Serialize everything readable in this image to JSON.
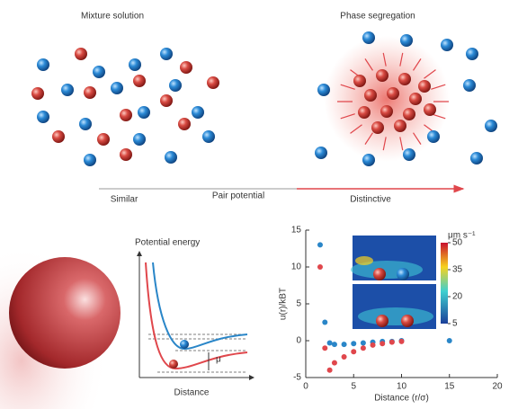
{
  "top": {
    "left_title": "Mixture solution",
    "right_title": "Phase segregation",
    "axis": {
      "left": "Similar",
      "middle": "Pair potential",
      "right": "Distinctive"
    }
  },
  "potential": {
    "ylabel": "Potential energy",
    "xlabel": "Distance",
    "mu": "μ"
  },
  "chart": {
    "type": "scatter",
    "ylabel": "u(r)/kBT",
    "xlabel": "Distance (r/σ)",
    "x": [
      1.5,
      2,
      2.5,
      3,
      4,
      5,
      6,
      7,
      8,
      9,
      10,
      15
    ],
    "series": [
      {
        "color": "#2a86c8",
        "values": [
          13,
          2.5,
          -0.3,
          -0.5,
          -0.5,
          -0.4,
          -0.3,
          -0.2,
          -0.1,
          -0.1,
          0,
          0
        ]
      },
      {
        "color": "#e0474c",
        "values": [
          10,
          -1,
          -4,
          -3,
          -2.2,
          -1.5,
          -1,
          -0.6,
          -0.4,
          -0.2,
          -0.1,
          null
        ]
      }
    ],
    "xlim": [
      0,
      20
    ],
    "xticks": [
      0,
      5,
      10,
      15,
      20
    ],
    "ylim": [
      -5,
      15
    ],
    "yticks": [
      -5,
      0,
      5,
      10,
      15
    ],
    "colorbar": {
      "label": "μm s⁻¹",
      "lim": [
        5,
        50
      ],
      "ticks": [
        5,
        20,
        35,
        50
      ]
    }
  }
}
